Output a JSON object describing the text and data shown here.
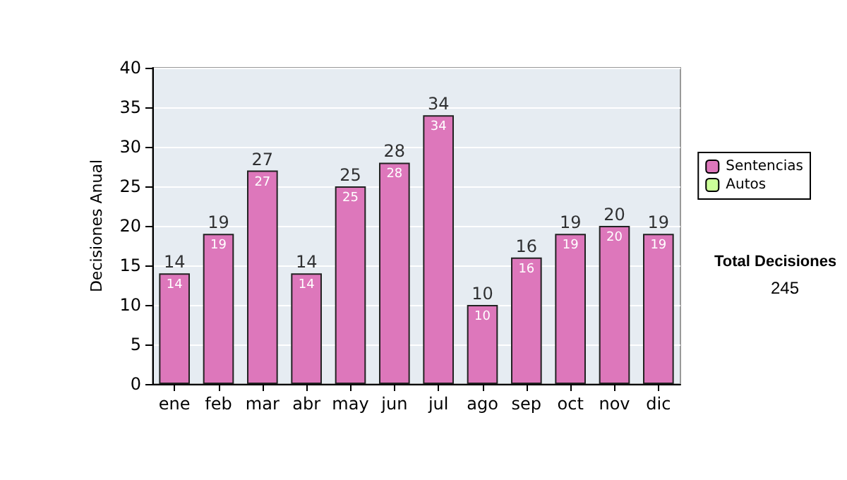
{
  "chart_data": {
    "type": "bar",
    "ylabel": "Decisiones Anual",
    "categories": [
      "ene",
      "feb",
      "mar",
      "abr",
      "may",
      "jun",
      "jul",
      "ago",
      "sep",
      "oct",
      "nov",
      "dic"
    ],
    "series": [
      {
        "name": "Sentencias",
        "color": "#dd77bb",
        "values": [
          14,
          19,
          27,
          14,
          25,
          28,
          34,
          10,
          16,
          19,
          20,
          19
        ]
      },
      {
        "name": "Autos",
        "color": "#ccff99",
        "values": [
          null,
          null,
          null,
          null,
          null,
          null,
          null,
          null,
          null,
          null,
          null,
          null
        ]
      }
    ],
    "stacked": true,
    "data_labels": true,
    "totals": [
      "14",
      "19",
      "27",
      "14",
      "25",
      "28",
      "34",
      "10",
      "16",
      "19",
      "20",
      "19"
    ],
    "ylim": [
      0,
      40
    ],
    "yticks": [
      0,
      5,
      10,
      15,
      20,
      25,
      30,
      35,
      40
    ],
    "grid": "y",
    "legend": "right",
    "annotations": [
      "Total Decisiones",
      "245"
    ]
  }
}
